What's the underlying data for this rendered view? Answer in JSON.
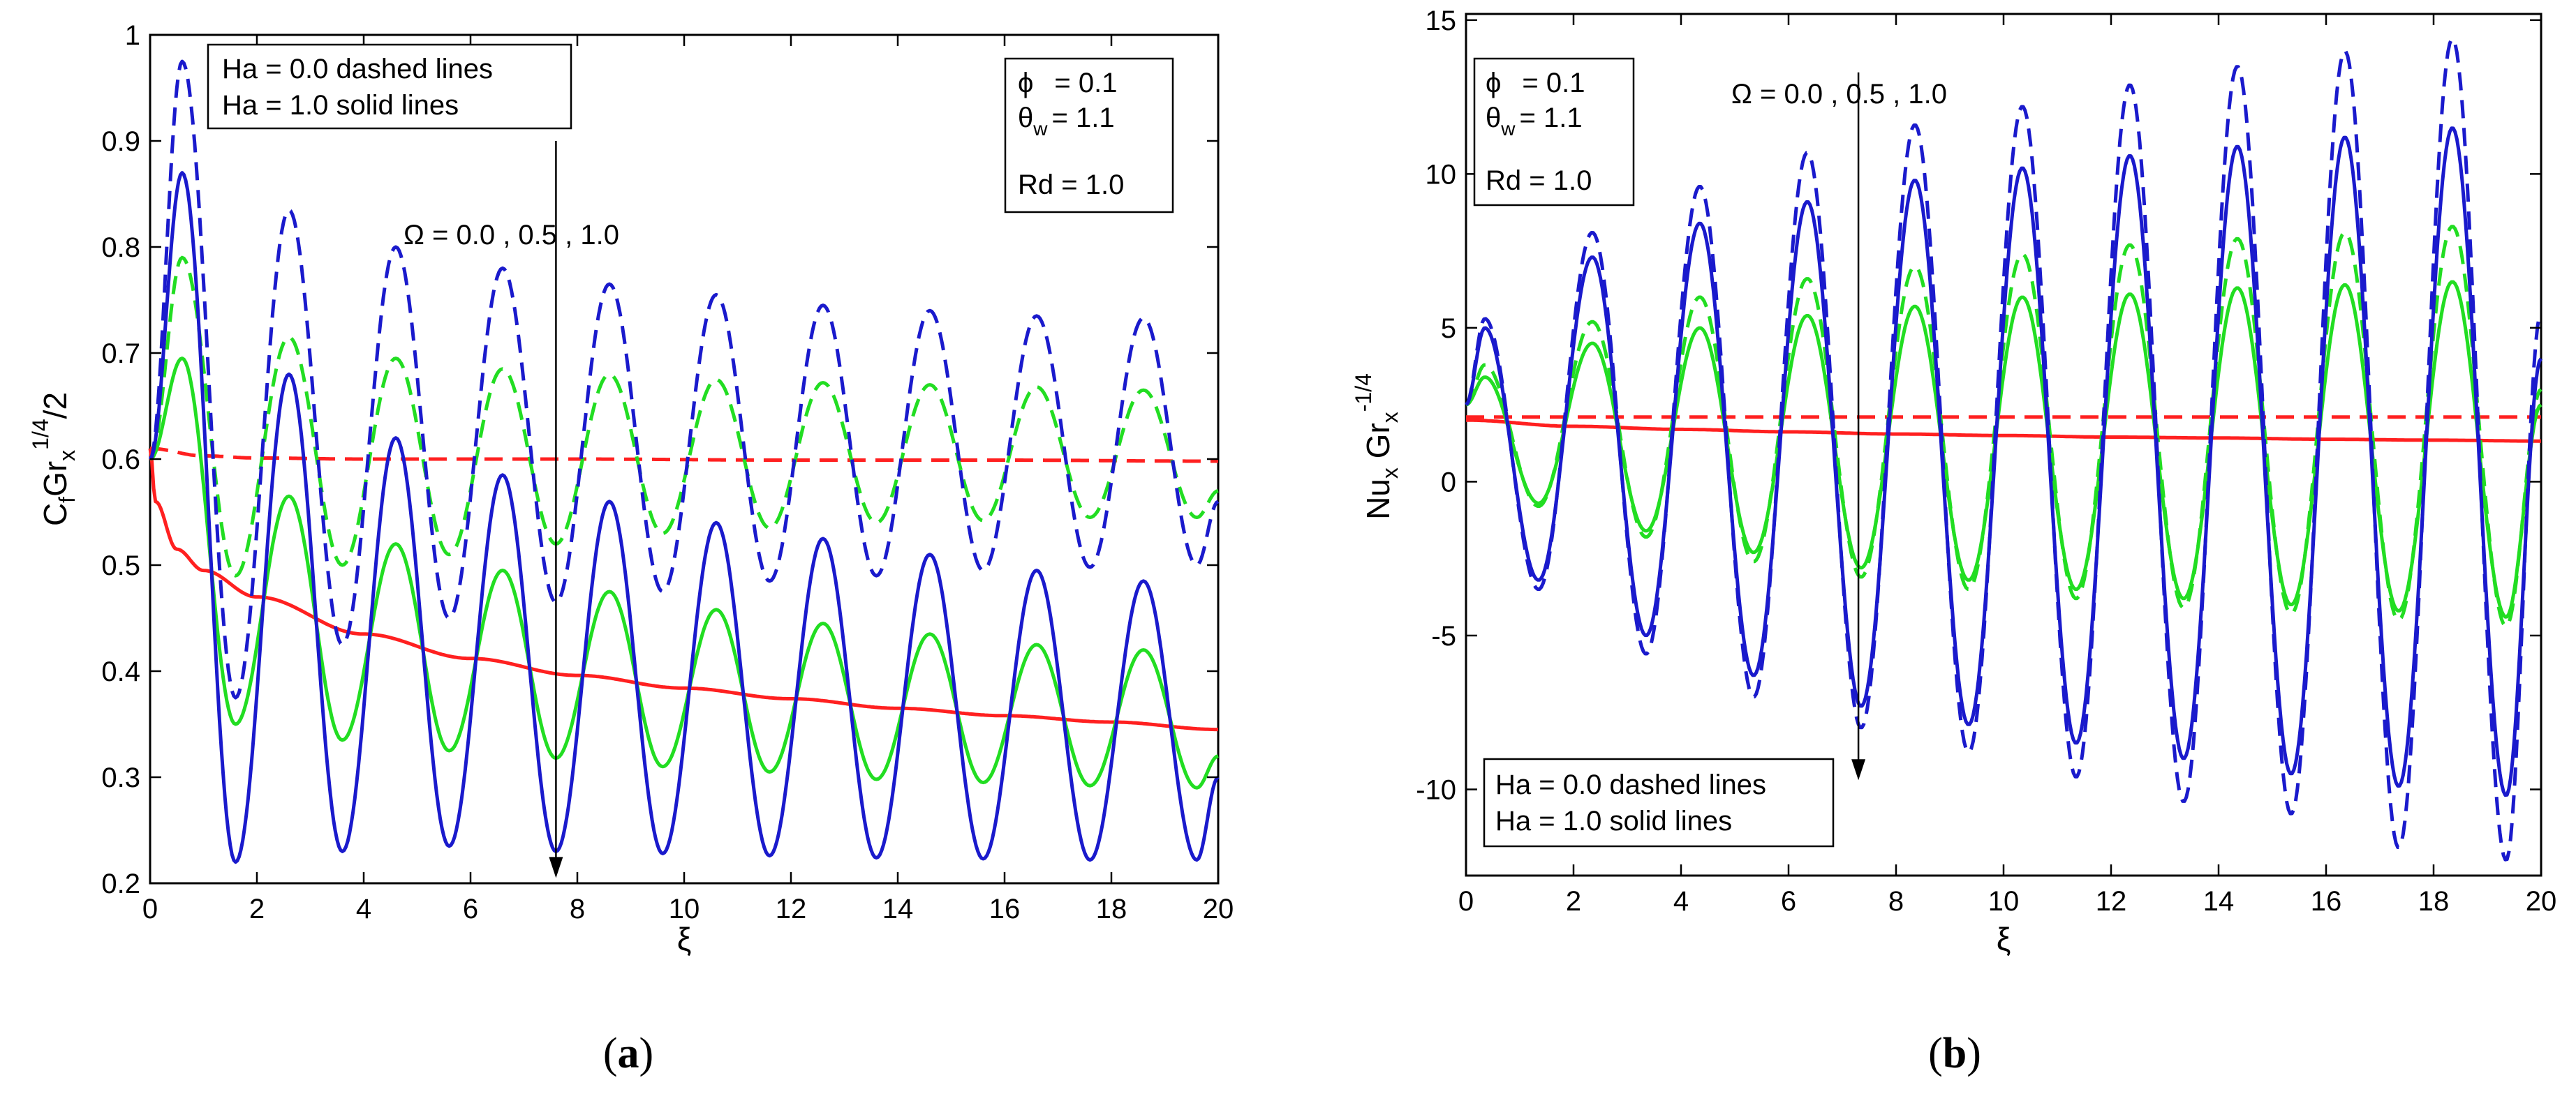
{
  "chart_data": [
    {
      "type": "line",
      "panel_label": {
        "open": "(",
        "letter": "a",
        "close": ")"
      },
      "xlabel": "ξ",
      "ylabel": {
        "main": "C",
        "sub1": "f",
        "mid": "Gr",
        "sub2": "x",
        "sup": "1/4",
        "tail": "/2"
      },
      "xlim": [
        0,
        20
      ],
      "ylim": [
        0.2,
        1.0
      ],
      "xticks": [
        0,
        2,
        4,
        6,
        8,
        10,
        12,
        14,
        16,
        18,
        20
      ],
      "yticks": [
        0.2,
        0.3,
        0.4,
        0.5,
        0.6,
        0.7,
        0.8,
        0.9,
        1.0
      ],
      "ytick_labels": [
        "0.2",
        "0.3",
        "0.4",
        "0.5",
        "0.6",
        "0.7",
        "0.8",
        "0.9",
        "1"
      ],
      "legend_style": {
        "lines": [
          "Ha = 0.0  dashed lines",
          "Ha = 1.0  solid lines"
        ]
      },
      "legend_params": {
        "phi": "ϕ",
        "phi_val": "= 0.1",
        "theta": "θ",
        "theta_sub": "w",
        "theta_val": "= 1.1",
        "rd": "Rd  = 1.0"
      },
      "annotation": {
        "text": "Ω = 0.0 , 0.5 , 1.0",
        "arrow_x": 7.6,
        "arrow_from": 0.9,
        "arrow_to": 0.205
      },
      "colors": {
        "omega_0": "#ff2020",
        "omega_05": "#22dd22",
        "omega_1": "#1a1acc"
      },
      "series": [
        {
          "name": "Ω = 0.0, Ha = 0.0",
          "style": "dashed",
          "color": "#ff2020",
          "x": [
            0,
            1,
            2,
            4,
            8,
            12,
            16,
            20
          ],
          "y": [
            0.61,
            0.603,
            0.601,
            0.6,
            0.6,
            0.599,
            0.599,
            0.598
          ]
        },
        {
          "name": "Ω = 0.0, Ha = 1.0",
          "style": "solid",
          "color": "#ff2020",
          "x": [
            0,
            0.1,
            0.5,
            1,
            2,
            4,
            6,
            8,
            10,
            12,
            14,
            16,
            18,
            20
          ],
          "y": [
            0.61,
            0.56,
            0.515,
            0.495,
            0.47,
            0.435,
            0.412,
            0.396,
            0.384,
            0.374,
            0.365,
            0.358,
            0.352,
            0.345
          ]
        },
        {
          "name": "Ω = 0.5, Ha = 0.0",
          "style": "dashed",
          "color": "#22dd22",
          "x": [
            0,
            0.6,
            1.6,
            2.6,
            3.6,
            4.6,
            5.6,
            6.6,
            7.6,
            8.6,
            9.6,
            10.6,
            11.6,
            12.6,
            13.6,
            14.6,
            15.6,
            16.6,
            17.6,
            18.6,
            19.6,
            20
          ],
          "y": [
            0.6,
            0.79,
            0.49,
            0.715,
            0.5,
            0.695,
            0.51,
            0.685,
            0.52,
            0.68,
            0.53,
            0.675,
            0.535,
            0.672,
            0.54,
            0.67,
            0.542,
            0.668,
            0.545,
            0.665,
            0.545,
            0.57
          ]
        },
        {
          "name": "Ω = 0.5, Ha = 1.0",
          "style": "solid",
          "color": "#22dd22",
          "x": [
            0,
            0.6,
            1.6,
            2.6,
            3.6,
            4.6,
            5.6,
            6.6,
            7.6,
            8.6,
            9.6,
            10.6,
            11.6,
            12.6,
            13.6,
            14.6,
            15.6,
            16.6,
            17.6,
            18.6,
            19.6,
            20
          ],
          "y": [
            0.6,
            0.695,
            0.35,
            0.565,
            0.335,
            0.52,
            0.325,
            0.495,
            0.318,
            0.475,
            0.31,
            0.458,
            0.305,
            0.445,
            0.298,
            0.435,
            0.295,
            0.425,
            0.292,
            0.42,
            0.29,
            0.32
          ]
        },
        {
          "name": "Ω = 1.0, Ha = 0.0",
          "style": "dashed",
          "color": "#1a1acc",
          "x": [
            0,
            0.6,
            1.6,
            2.6,
            3.6,
            4.6,
            5.6,
            6.6,
            7.6,
            8.6,
            9.6,
            10.6,
            11.6,
            12.6,
            13.6,
            14.6,
            15.6,
            16.6,
            17.6,
            18.6,
            19.6,
            20
          ],
          "y": [
            0.6,
            0.975,
            0.375,
            0.835,
            0.425,
            0.8,
            0.45,
            0.78,
            0.465,
            0.765,
            0.475,
            0.755,
            0.485,
            0.745,
            0.49,
            0.74,
            0.495,
            0.735,
            0.498,
            0.733,
            0.5,
            0.56
          ]
        },
        {
          "name": "Ω = 1.0, Ha = 1.0",
          "style": "solid",
          "color": "#1a1acc",
          "x": [
            0,
            0.6,
            1.6,
            2.6,
            3.6,
            4.6,
            5.6,
            6.6,
            7.6,
            8.6,
            9.6,
            10.6,
            11.6,
            12.6,
            13.6,
            14.6,
            15.6,
            16.6,
            17.6,
            18.6,
            19.6,
            20
          ],
          "y": [
            0.6,
            0.87,
            0.22,
            0.68,
            0.23,
            0.62,
            0.235,
            0.585,
            0.23,
            0.56,
            0.228,
            0.54,
            0.226,
            0.525,
            0.224,
            0.51,
            0.223,
            0.495,
            0.222,
            0.485,
            0.222,
            0.3
          ]
        }
      ]
    },
    {
      "type": "line",
      "panel_label": {
        "open": "(",
        "letter": "b",
        "close": ")"
      },
      "xlabel": "ξ",
      "ylabel": {
        "main": "Nu",
        "sub1": "x",
        "mid": " Gr",
        "sub2": "x",
        "sup": "-1/4",
        "tail": ""
      },
      "xlim": [
        0,
        20
      ],
      "ylim": [
        -12.8,
        15.2
      ],
      "xticks": [
        0,
        2,
        4,
        6,
        8,
        10,
        12,
        14,
        16,
        18,
        20
      ],
      "yticks": [
        -10,
        -5,
        0,
        5,
        10,
        15
      ],
      "ytick_labels": [
        "-10",
        "-5",
        "0",
        "5",
        "10",
        "15"
      ],
      "legend_style": {
        "lines": [
          "Ha = 0.0  dashed lines",
          "Ha = 1.0  solid lines"
        ]
      },
      "legend_params": {
        "phi": "ϕ",
        "phi_val": "= 0.1",
        "theta": "θ",
        "theta_sub": "w",
        "theta_val": "= 1.1",
        "rd": "Rd  = 1.0"
      },
      "annotation": {
        "text": "Ω = 0.0 , 0.5 , 1.0",
        "arrow_x": 7.3,
        "arrow_from": 13.3,
        "arrow_to": -9.7
      },
      "colors": {
        "omega_0": "#ff2020",
        "omega_05": "#22dd22",
        "omega_1": "#1a1acc"
      },
      "series": [
        {
          "name": "Ω = 0.0, Ha = 0.0",
          "style": "dashed",
          "color": "#ff2020",
          "x": [
            0,
            4,
            8,
            12,
            16,
            20
          ],
          "y": [
            2.1,
            2.1,
            2.1,
            2.1,
            2.1,
            2.1
          ]
        },
        {
          "name": "Ω = 0.0, Ha = 1.0",
          "style": "solid",
          "color": "#ff2020",
          "x": [
            0,
            2,
            4,
            6,
            8,
            10,
            12,
            14,
            16,
            18,
            20
          ],
          "y": [
            2.0,
            1.8,
            1.7,
            1.62,
            1.55,
            1.5,
            1.45,
            1.42,
            1.38,
            1.35,
            1.32
          ]
        },
        {
          "name": "Ω = 0.5, Ha = 0.0",
          "style": "dashed",
          "color": "#22dd22",
          "x": [
            0,
            0.35,
            1.35,
            2.35,
            3.35,
            4.35,
            5.35,
            6.35,
            7.35,
            8.35,
            9.35,
            10.35,
            11.35,
            12.35,
            13.35,
            14.35,
            15.35,
            16.35,
            17.35,
            18.35,
            19.35,
            20
          ],
          "y": [
            2.5,
            3.8,
            -0.8,
            5.2,
            -1.8,
            6.0,
            -2.6,
            6.6,
            -3.1,
            7.0,
            -3.5,
            7.4,
            -3.8,
            7.7,
            -4.1,
            7.9,
            -4.3,
            8.1,
            -4.5,
            8.3,
            -4.7,
            3.0
          ]
        },
        {
          "name": "Ω = 0.5, Ha = 1.0",
          "style": "solid",
          "color": "#22dd22",
          "x": [
            0,
            0.35,
            1.35,
            2.35,
            3.35,
            4.35,
            5.35,
            6.35,
            7.35,
            8.35,
            9.35,
            10.35,
            11.35,
            12.35,
            13.35,
            14.35,
            15.35,
            16.35,
            17.35,
            18.35,
            19.35,
            20
          ],
          "y": [
            2.5,
            3.4,
            -0.7,
            4.5,
            -1.6,
            5.0,
            -2.3,
            5.4,
            -2.8,
            5.7,
            -3.2,
            6.0,
            -3.5,
            6.1,
            -3.8,
            6.3,
            -4.0,
            6.4,
            -4.2,
            6.5,
            -4.4,
            2.5
          ]
        },
        {
          "name": "Ω = 1.0, Ha = 0.0",
          "style": "dashed",
          "color": "#1a1acc",
          "x": [
            0,
            0.35,
            1.35,
            2.35,
            3.35,
            4.35,
            5.35,
            6.35,
            7.35,
            8.35,
            9.35,
            10.35,
            11.35,
            12.35,
            13.35,
            14.35,
            15.35,
            16.35,
            17.35,
            18.35,
            19.35,
            20
          ],
          "y": [
            2.5,
            5.3,
            -3.5,
            8.1,
            -5.6,
            9.6,
            -7.0,
            10.7,
            -8.0,
            11.6,
            -8.8,
            12.2,
            -9.6,
            12.9,
            -10.4,
            13.5,
            -10.8,
            14.0,
            -11.9,
            14.4,
            -12.3,
            5.5
          ]
        },
        {
          "name": "Ω = 1.0, Ha = 1.0",
          "style": "solid",
          "color": "#1a1acc",
          "x": [
            0,
            0.35,
            1.35,
            2.35,
            3.35,
            4.35,
            5.35,
            6.35,
            7.35,
            8.35,
            9.35,
            10.35,
            11.35,
            12.35,
            13.35,
            14.35,
            15.35,
            16.35,
            17.35,
            18.35,
            19.35,
            20
          ],
          "y": [
            2.5,
            5.0,
            -3.2,
            7.3,
            -5.0,
            8.4,
            -6.3,
            9.1,
            -7.3,
            9.8,
            -7.9,
            10.2,
            -8.5,
            10.6,
            -9.0,
            10.9,
            -9.5,
            11.2,
            -9.9,
            11.5,
            -10.2,
            4.0
          ]
        }
      ]
    }
  ]
}
